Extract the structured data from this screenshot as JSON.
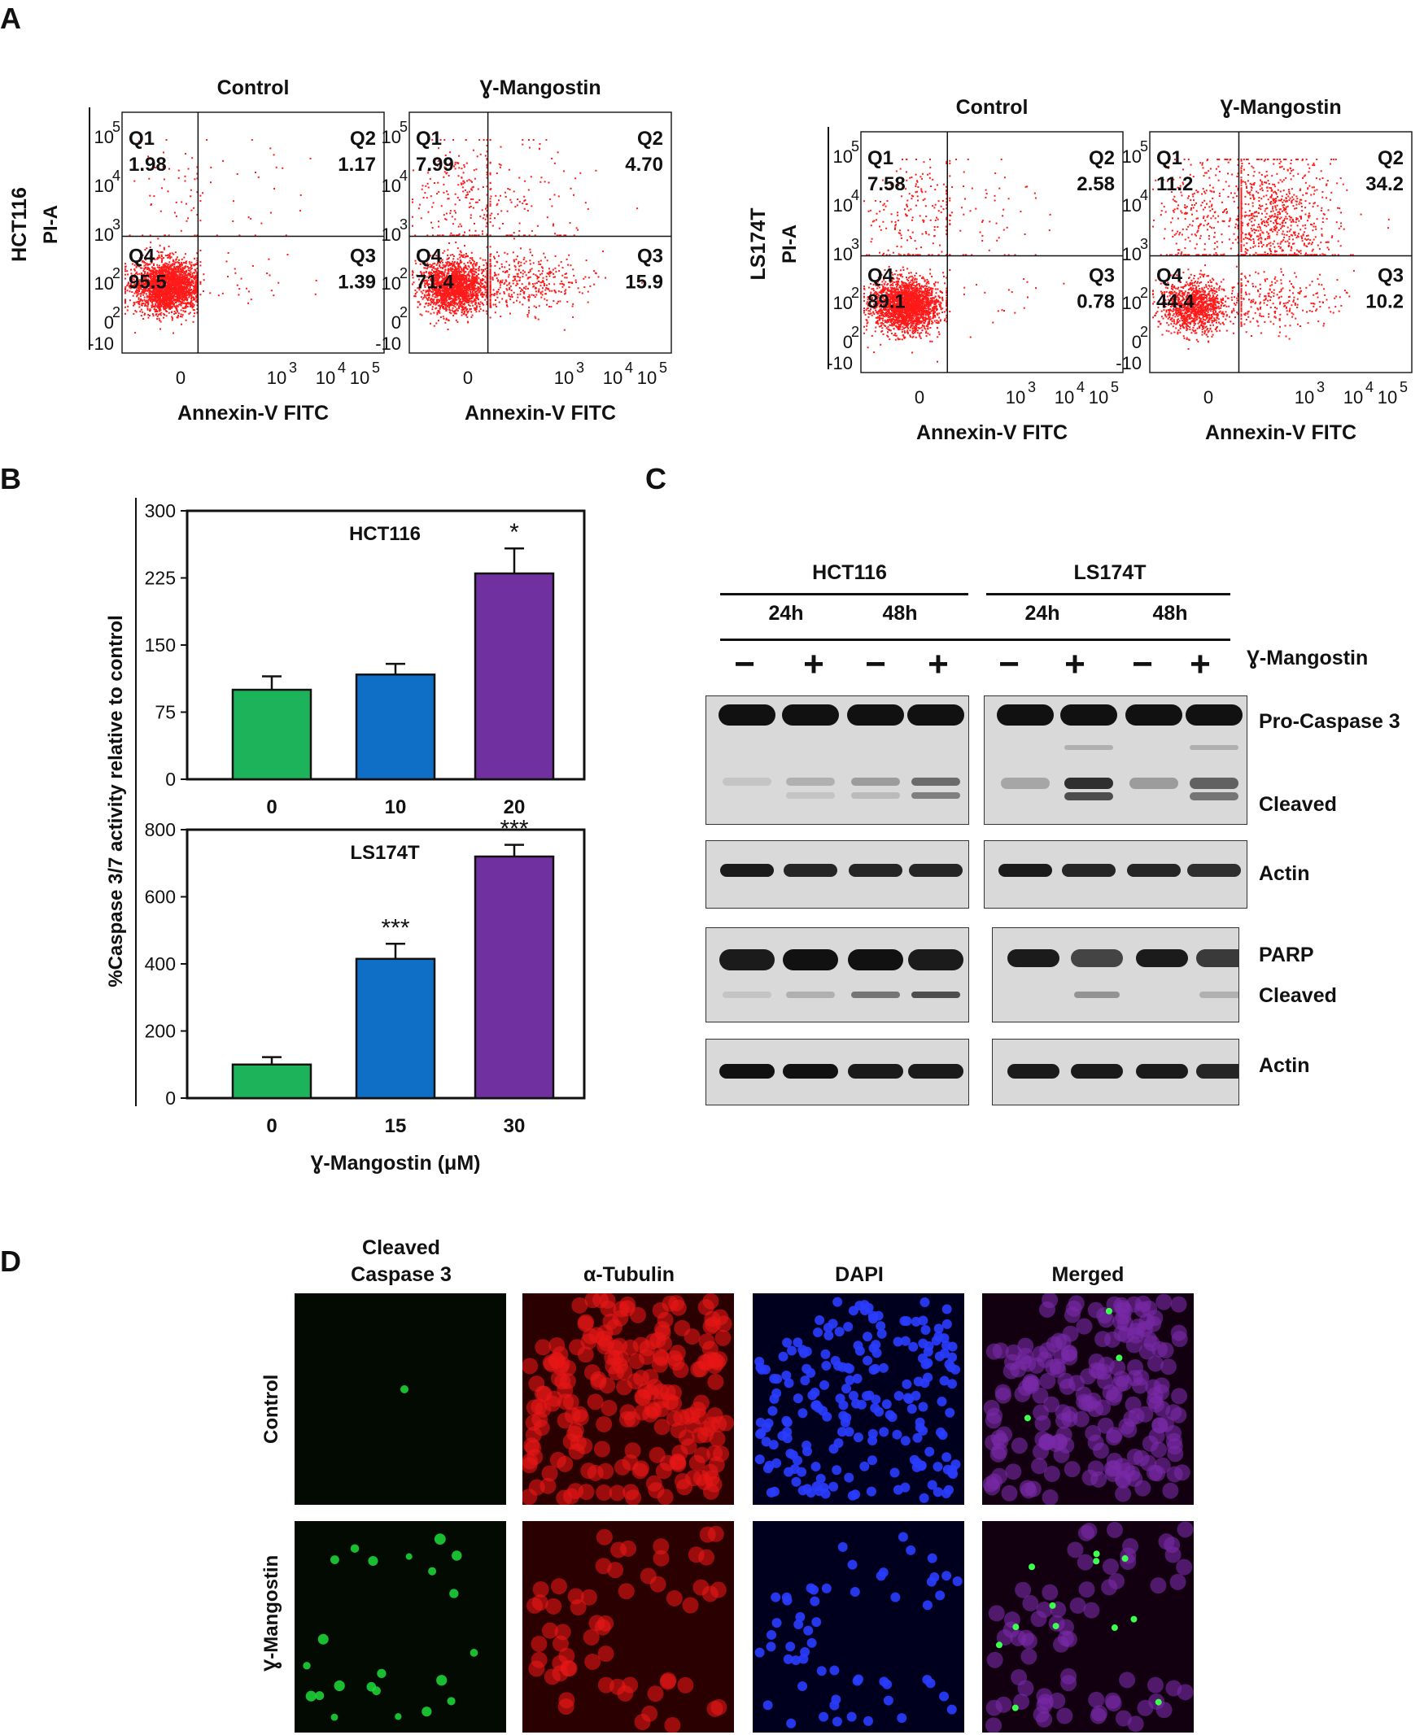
{
  "panels": {
    "A": "A",
    "B": "B",
    "C": "C",
    "D": "D"
  },
  "flow": {
    "x_label": "Annexin-V FITC",
    "y_label": "PI-A",
    "y_ticks": [
      {
        "base": "10",
        "exp": "5"
      },
      {
        "base": "10",
        "exp": "4"
      },
      {
        "base": "10",
        "exp": "3"
      },
      {
        "base": "10",
        "exp": "2"
      },
      {
        "base": "0",
        "exp": "2"
      },
      {
        "base": "-10",
        "exp": ""
      }
    ],
    "x_ticks": [
      {
        "base": "0",
        "exp": ""
      },
      {
        "base": "10",
        "exp": "3"
      },
      {
        "base": "10",
        "exp": "4"
      },
      {
        "base": "10",
        "exp": "5"
      }
    ],
    "cell_lines": [
      {
        "name": "HCT116",
        "plots": [
          {
            "title": "Control",
            "q1": "1.98",
            "q2": "1.17",
            "q3": "1.39",
            "q4": "95.5"
          },
          {
            "title": "Ɣ-Mangostin",
            "q1": "7.99",
            "q2": "4.70",
            "q3": "15.9",
            "q4": "71.4"
          }
        ]
      },
      {
        "name": "LS174T",
        "plots": [
          {
            "title": "Control",
            "q1": "7.58",
            "q2": "2.58",
            "q3": "0.78",
            "q4": "89.1"
          },
          {
            "title": "Ɣ-Mangostin",
            "q1": "11.2",
            "q2": "34.2",
            "q3": "10.2",
            "q4": "44.4"
          }
        ]
      }
    ],
    "quadrant_labels": {
      "q1": "Q1",
      "q2": "Q2",
      "q3": "Q3",
      "q4": "Q4"
    }
  },
  "chart_data": [
    {
      "type": "bar",
      "title": "HCT116",
      "categories": [
        "0",
        "10",
        "20"
      ],
      "values": [
        100,
        117,
        230
      ],
      "errors": [
        15,
        12,
        28
      ],
      "significance": [
        "",
        "",
        "*"
      ],
      "colors": [
        "#1db35a",
        "#0f6fc6",
        "#7030a0"
      ],
      "ylim": [
        0,
        300
      ],
      "yticks": [
        0,
        75,
        150,
        225,
        300
      ]
    },
    {
      "type": "bar",
      "title": "LS174T",
      "categories": [
        "0",
        "15",
        "30"
      ],
      "values": [
        100,
        415,
        720
      ],
      "errors": [
        22,
        45,
        35
      ],
      "significance": [
        "",
        "***",
        "***"
      ],
      "colors": [
        "#1db35a",
        "#0f6fc6",
        "#7030a0"
      ],
      "ylim": [
        0,
        800
      ],
      "yticks": [
        0,
        200,
        400,
        600,
        800
      ],
      "xlabel": "Ɣ-Mangostin (μM)"
    }
  ],
  "bar_ylabel": "%Caspase 3/7 activity relative to control",
  "western": {
    "cell_lines": [
      "HCT116",
      "LS174T"
    ],
    "times": [
      "24h",
      "48h",
      "24h",
      "48h"
    ],
    "treatment": [
      "−",
      "+",
      "−",
      "+",
      "−",
      "+",
      "−",
      "+"
    ],
    "treatment_label": "Ɣ-Mangostin",
    "band_labels": {
      "pro_caspase": "Pro-Caspase 3",
      "cleaved1": "Cleaved",
      "actin1": "Actin",
      "parp": "PARP",
      "cleaved2": "Cleaved",
      "actin2": "Actin"
    }
  },
  "if": {
    "columns": [
      "Cleaved\nCaspase 3",
      "α-Tubulin",
      "DAPI",
      "Merged"
    ],
    "col1_line1": "Cleaved",
    "col1_line2": "Caspase 3",
    "rows": [
      "Control",
      "Ɣ-Mangostin"
    ]
  }
}
